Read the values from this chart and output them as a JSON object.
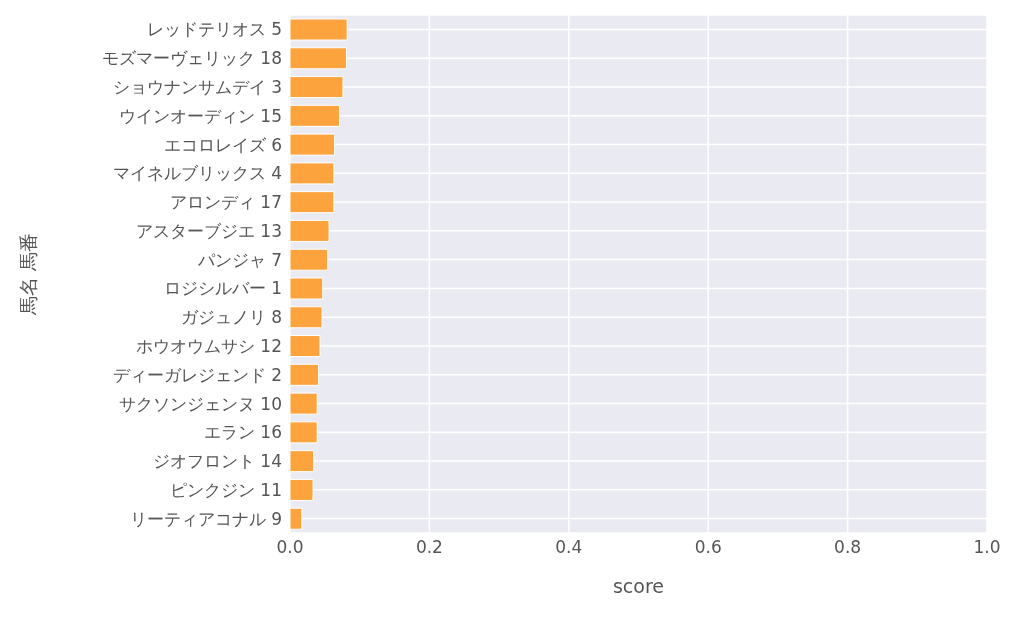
{
  "chart_data": {
    "type": "bar",
    "orientation": "horizontal",
    "xlabel": "score",
    "ylabel": "馬名 馬番",
    "categories": [
      "レッドテリオス 5",
      "モズマーヴェリック 18",
      "ショウナンサムデイ 3",
      "ウインオーディン 15",
      "エコロレイズ 6",
      "マイネルブリックス 4",
      "アロンディ 17",
      "アスターブジエ 13",
      "パンジャ 7",
      "ロジシルバー 1",
      "ガジュノリ 8",
      "ホウオウムサシ 12",
      "ディーガレジェンド 2",
      "サクソンジェンヌ 10",
      "エラン 16",
      "ジオフロント 14",
      "ピンクジン 11",
      "リーティアコナル 9"
    ],
    "values": [
      0.082,
      0.081,
      0.076,
      0.071,
      0.064,
      0.063,
      0.063,
      0.056,
      0.054,
      0.047,
      0.046,
      0.043,
      0.041,
      0.039,
      0.039,
      0.034,
      0.033,
      0.017
    ],
    "color": "#fd9f34",
    "xlim": [
      0,
      1
    ],
    "xticks": [
      {
        "value": 0,
        "label": "0.0"
      },
      0.2,
      0.4,
      0.6,
      0.8,
      {
        "value": 1,
        "label": "1.0"
      }
    ],
    "grid": true
  }
}
